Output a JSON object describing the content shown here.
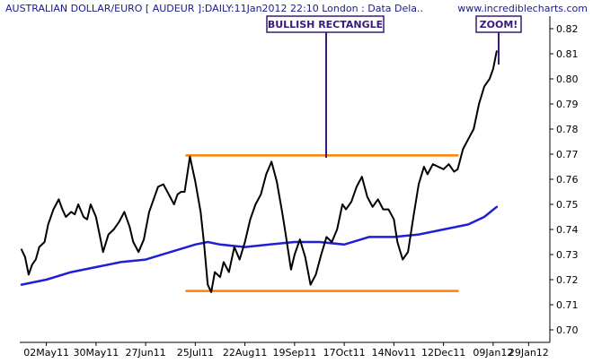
{
  "header": {
    "title": "AUSTRALIAN DOLLAR/EURO [ AUDEUR ]:DAILY:11Jan2012 22:10 London : Data Dela..",
    "site": "www.incrediblecharts.com"
  },
  "annotations": {
    "pattern_label": "BULLISH RECTANGLE",
    "zoom_label": "ZOOM!"
  },
  "colors": {
    "price": "#000000",
    "moving_average": "#1f1fd6",
    "rectangle_lines": "#ff8000",
    "annotation_border": "#3a1a78",
    "title": "#1a1a8c",
    "site": "#1a1a8c"
  },
  "chart_data": {
    "type": "line",
    "title": "AUSTRALIAN DOLLAR/EURO [ AUDEUR ]:DAILY:11Jan2012 22:10 London : Data Dela..",
    "x_tick_labels": [
      "02May11",
      "30May11",
      "27Jun11",
      "25Jul11",
      "22Aug11",
      "19Sep11",
      "17Oct11",
      "14Nov11",
      "12Dec11",
      "09Jan12",
      "29Jan12"
    ],
    "x_tick_dates": [
      "2011-05-02",
      "2011-05-30",
      "2011-06-27",
      "2011-07-25",
      "2011-08-22",
      "2011-09-19",
      "2011-10-17",
      "2011-11-14",
      "2011-12-12",
      "2012-01-09",
      "2012-01-29"
    ],
    "xlim": [
      "2011-04-17",
      "2012-02-10"
    ],
    "ylim": [
      0.695,
      0.825
    ],
    "y_ticks": [
      0.7,
      0.71,
      0.72,
      0.73,
      0.74,
      0.75,
      0.76,
      0.77,
      0.78,
      0.79,
      0.8,
      0.81,
      0.82
    ],
    "grid": false,
    "series": [
      {
        "key": "price",
        "x": [
          "2011-04-18",
          "2011-04-20",
          "2011-04-22",
          "2011-04-24",
          "2011-04-26",
          "2011-04-28",
          "2011-05-01",
          "2011-05-03",
          "2011-05-06",
          "2011-05-09",
          "2011-05-11",
          "2011-05-13",
          "2011-05-16",
          "2011-05-18",
          "2011-05-20",
          "2011-05-23",
          "2011-05-25",
          "2011-05-27",
          "2011-05-30",
          "2011-06-01",
          "2011-06-03",
          "2011-06-06",
          "2011-06-09",
          "2011-06-12",
          "2011-06-15",
          "2011-06-18",
          "2011-06-20",
          "2011-06-23",
          "2011-06-26",
          "2011-06-29",
          "2011-07-01",
          "2011-07-04",
          "2011-07-07",
          "2011-07-10",
          "2011-07-13",
          "2011-07-15",
          "2011-07-17",
          "2011-07-19",
          "2011-07-22",
          "2011-07-25",
          "2011-07-28",
          "2011-07-30",
          "2011-08-01",
          "2011-08-03",
          "2011-08-05",
          "2011-08-08",
          "2011-08-10",
          "2011-08-13",
          "2011-08-16",
          "2011-08-19",
          "2011-08-22",
          "2011-08-25",
          "2011-08-28",
          "2011-08-31",
          "2011-09-03",
          "2011-09-06",
          "2011-09-09",
          "2011-09-12",
          "2011-09-14",
          "2011-09-17",
          "2011-09-19",
          "2011-09-22",
          "2011-09-25",
          "2011-09-28",
          "2011-10-01",
          "2011-10-04",
          "2011-10-07",
          "2011-10-10",
          "2011-10-13",
          "2011-10-16",
          "2011-10-18",
          "2011-10-21",
          "2011-10-24",
          "2011-10-27",
          "2011-10-30",
          "2011-11-02",
          "2011-11-05",
          "2011-11-08",
          "2011-11-11",
          "2011-11-14",
          "2011-11-16",
          "2011-11-19",
          "2011-11-22",
          "2011-11-25",
          "2011-11-28",
          "2011-12-01",
          "2011-12-03",
          "2011-12-06",
          "2011-12-09",
          "2011-12-12",
          "2011-12-15",
          "2011-12-18",
          "2011-12-20",
          "2011-12-23",
          "2011-12-26",
          "2011-12-29",
          "2012-01-01",
          "2012-01-04",
          "2012-01-07",
          "2012-01-09",
          "2012-01-11"
        ],
        "values": [
          0.732,
          0.729,
          0.722,
          0.726,
          0.728,
          0.733,
          0.735,
          0.742,
          0.748,
          0.752,
          0.748,
          0.745,
          0.747,
          0.746,
          0.75,
          0.745,
          0.744,
          0.75,
          0.745,
          0.738,
          0.731,
          0.738,
          0.74,
          0.743,
          0.747,
          0.741,
          0.735,
          0.731,
          0.736,
          0.747,
          0.751,
          0.757,
          0.758,
          0.754,
          0.75,
          0.754,
          0.755,
          0.755,
          0.769,
          0.759,
          0.747,
          0.734,
          0.718,
          0.715,
          0.723,
          0.721,
          0.727,
          0.723,
          0.733,
          0.728,
          0.735,
          0.744,
          0.75,
          0.754,
          0.762,
          0.767,
          0.759,
          0.747,
          0.738,
          0.724,
          0.73,
          0.736,
          0.729,
          0.718,
          0.722,
          0.73,
          0.737,
          0.735,
          0.74,
          0.75,
          0.748,
          0.751,
          0.757,
          0.761,
          0.753,
          0.749,
          0.752,
          0.748,
          0.748,
          0.744,
          0.735,
          0.728,
          0.731,
          0.745,
          0.758,
          0.765,
          0.762,
          0.766,
          0.765,
          0.764,
          0.766,
          0.763,
          0.764,
          0.772,
          0.776,
          0.78,
          0.79,
          0.797,
          0.8,
          0.804,
          0.811
        ]
      },
      {
        "key": "moving_average",
        "x": [
          "2011-04-18",
          "2011-05-02",
          "2011-05-16",
          "2011-05-30",
          "2011-06-13",
          "2011-06-27",
          "2011-07-11",
          "2011-07-25",
          "2011-08-01",
          "2011-08-08",
          "2011-08-22",
          "2011-09-05",
          "2011-09-19",
          "2011-10-03",
          "2011-10-17",
          "2011-10-31",
          "2011-11-14",
          "2011-11-28",
          "2011-12-12",
          "2011-12-26",
          "2012-01-04",
          "2012-01-11"
        ],
        "values": [
          0.718,
          0.72,
          0.723,
          0.725,
          0.727,
          0.728,
          0.731,
          0.734,
          0.735,
          0.734,
          0.733,
          0.734,
          0.735,
          0.735,
          0.734,
          0.737,
          0.737,
          0.738,
          0.74,
          0.742,
          0.745,
          0.749
        ]
      },
      {
        "key": "resistance",
        "x": [
          "2011-07-20",
          "2011-12-20"
        ],
        "values": [
          0.7695,
          0.7695
        ]
      },
      {
        "key": "support",
        "x": [
          "2011-07-20",
          "2011-12-20"
        ],
        "values": [
          0.7155,
          0.7155
        ]
      }
    ]
  }
}
